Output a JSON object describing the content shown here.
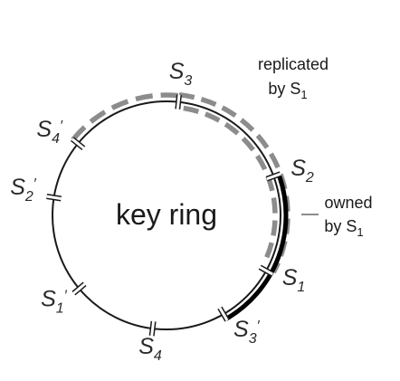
{
  "center_label": "key ring",
  "nodes": [
    {
      "id": "s3",
      "letter": "S",
      "sub": "3",
      "prime": false,
      "angle": -84
    },
    {
      "id": "s2",
      "letter": "S",
      "sub": "2",
      "prime": false,
      "angle": -20
    },
    {
      "id": "s1",
      "letter": "S",
      "sub": "1",
      "prime": false,
      "angle": 29
    },
    {
      "id": "s3p",
      "letter": "S",
      "sub": "3",
      "prime": true,
      "angle": 60
    },
    {
      "id": "s4",
      "letter": "S",
      "sub": "4",
      "prime": false,
      "angle": 97
    },
    {
      "id": "s1p",
      "letter": "S",
      "sub": "1",
      "prime": true,
      "angle": 140
    },
    {
      "id": "s2p",
      "letter": "S",
      "sub": "2",
      "prime": true,
      "angle": 189
    },
    {
      "id": "s4p",
      "letter": "S",
      "sub": "4",
      "prime": true,
      "angle": 219
    }
  ],
  "annotations": {
    "replicated": {
      "line1": "replicated",
      "line2_prefix": "by S",
      "line2_sub": "1"
    },
    "owned": {
      "line1": "owned",
      "line2_prefix": "by S",
      "line2_sub": "1"
    }
  },
  "colors": {
    "ring": "#1a1a1a",
    "owned_arc": "#000000",
    "replicated_arc": "#8c8c8c"
  }
}
